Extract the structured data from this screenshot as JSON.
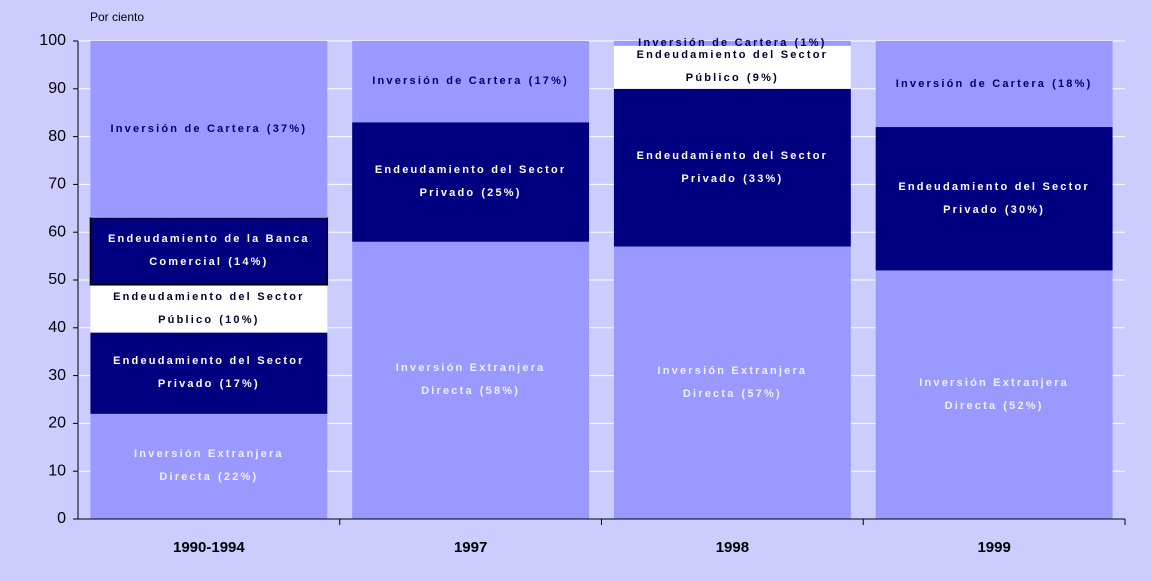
{
  "chart_data": {
    "type": "stacked_bar",
    "y_label": "Por ciento",
    "categories": [
      "1990-1994",
      "1997",
      "1998",
      "1999"
    ],
    "ylim": [
      0,
      100
    ],
    "yticks": [
      0,
      10,
      20,
      30,
      40,
      50,
      60,
      70,
      80,
      90,
      100
    ],
    "grid": true,
    "series": [
      {
        "name": "Inversión Extranjera Directa",
        "color": "#9999ff",
        "text_color": "#eeeeff",
        "values": [
          22,
          58,
          57,
          52
        ],
        "value_labels": [
          "(22%)",
          "(58%)",
          "(57%)",
          "(52%)"
        ]
      },
      {
        "name": "Endeudamiento del Sector Privado",
        "color": "#000080",
        "text_color": "#ffffff",
        "values": [
          17,
          25,
          33,
          30
        ],
        "value_labels": [
          "(17%)",
          "(25%)",
          "(33%)",
          "(30%)"
        ]
      },
      {
        "name": "Endeudamiento del Sector Público",
        "color": "#ffffff",
        "text_color": "#000033",
        "values": [
          10,
          null,
          9,
          null
        ],
        "value_labels": [
          "(10%)",
          null,
          "(9%)",
          null
        ]
      },
      {
        "name": "Endeudamiento de la Banca Comercial",
        "color": "#000080",
        "text_color": "#ffffff",
        "border": "#000000",
        "values": [
          14,
          null,
          null,
          null
        ],
        "value_labels": [
          "(14%)",
          null,
          null,
          null
        ]
      },
      {
        "name": "Inversión de Cartera",
        "color": "#9999ff",
        "text_color": "#000066",
        "values": [
          37,
          17,
          1,
          18
        ],
        "value_labels": [
          "(37%)",
          "(17%)",
          "(1%)",
          "(18%)"
        ]
      }
    ]
  }
}
